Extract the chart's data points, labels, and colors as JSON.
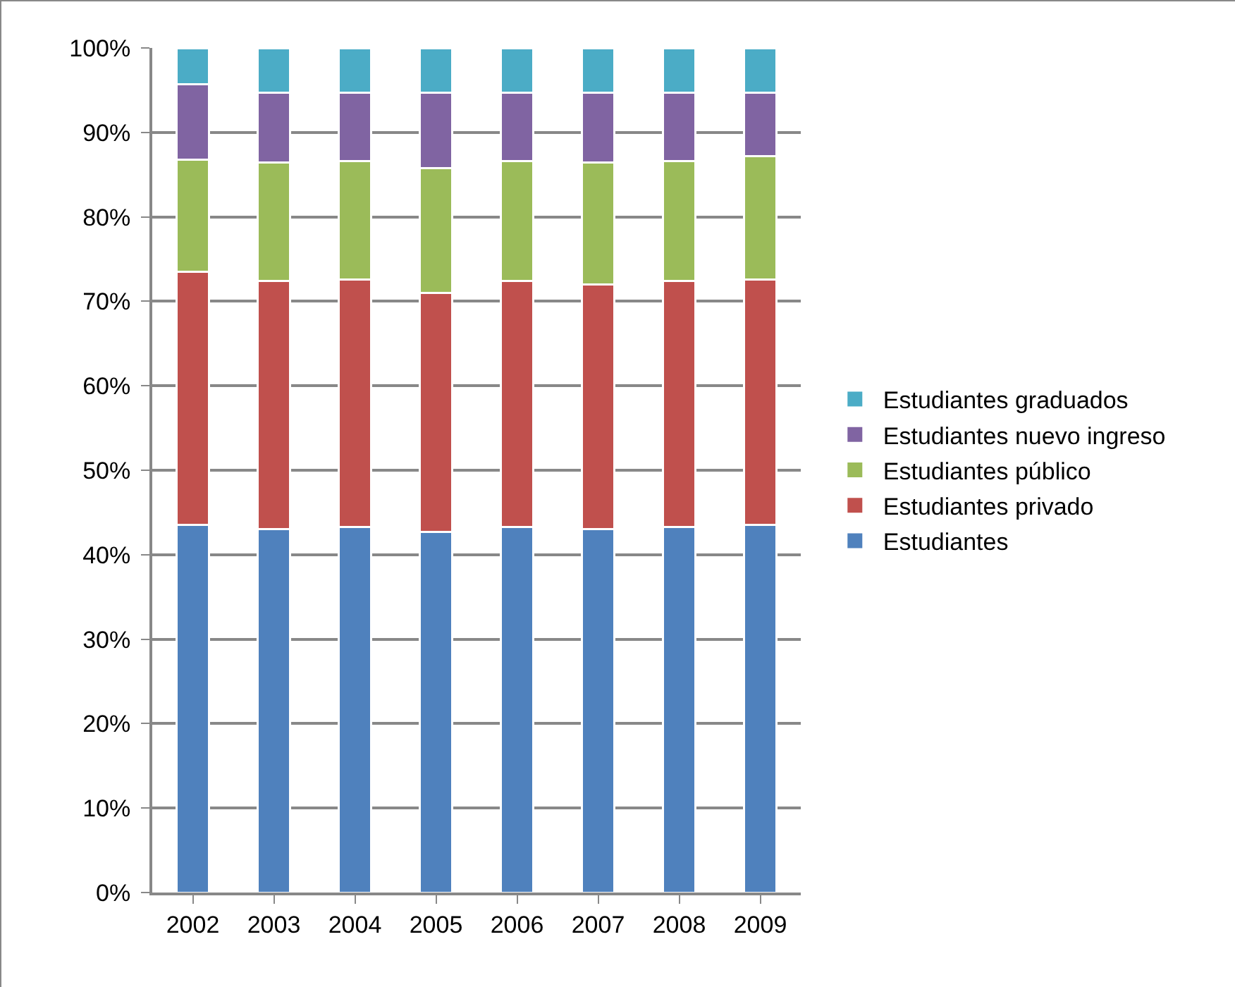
{
  "chart_data": {
    "type": "bar",
    "stacked": true,
    "categories": [
      "2002",
      "2003",
      "2004",
      "2005",
      "2006",
      "2007",
      "2008",
      "2009"
    ],
    "series": [
      {
        "name": "Estudiantes",
        "color": "#4f81bd",
        "values": [
          43.5,
          43.0,
          43.3,
          42.7,
          43.3,
          43.0,
          43.3,
          43.5
        ]
      },
      {
        "name": "Estudiantes privado",
        "color": "#c0504d",
        "values": [
          30.0,
          29.4,
          29.3,
          28.3,
          29.1,
          29.0,
          29.1,
          29.1
        ]
      },
      {
        "name": "Estudiantes público",
        "color": "#9bbb59",
        "values": [
          13.3,
          14.0,
          14.0,
          14.8,
          14.2,
          14.4,
          14.2,
          14.6
        ]
      },
      {
        "name": "Estudiantes nuevo ingreso",
        "color": "#8064a2",
        "values": [
          8.9,
          8.3,
          8.1,
          8.9,
          8.1,
          8.3,
          8.1,
          7.5
        ]
      },
      {
        "name": "Estudiantes graduados",
        "color": "#4bacc6",
        "values": [
          4.3,
          5.3,
          5.3,
          5.3,
          5.3,
          5.3,
          5.3,
          5.3
        ]
      }
    ],
    "ylim": [
      0,
      100
    ],
    "yticks": [
      {
        "value": 0,
        "label": "0%"
      },
      {
        "value": 10,
        "label": "10%"
      },
      {
        "value": 20,
        "label": "20%"
      },
      {
        "value": 30,
        "label": "30%"
      },
      {
        "value": 40,
        "label": "40%"
      },
      {
        "value": 50,
        "label": "50%"
      },
      {
        "value": 60,
        "label": "60%"
      },
      {
        "value": 70,
        "label": "70%"
      },
      {
        "value": 80,
        "label": "80%"
      },
      {
        "value": 90,
        "label": "90%"
      },
      {
        "value": 100,
        "label": "100%"
      }
    ],
    "grid": "y",
    "legend": "right"
  }
}
